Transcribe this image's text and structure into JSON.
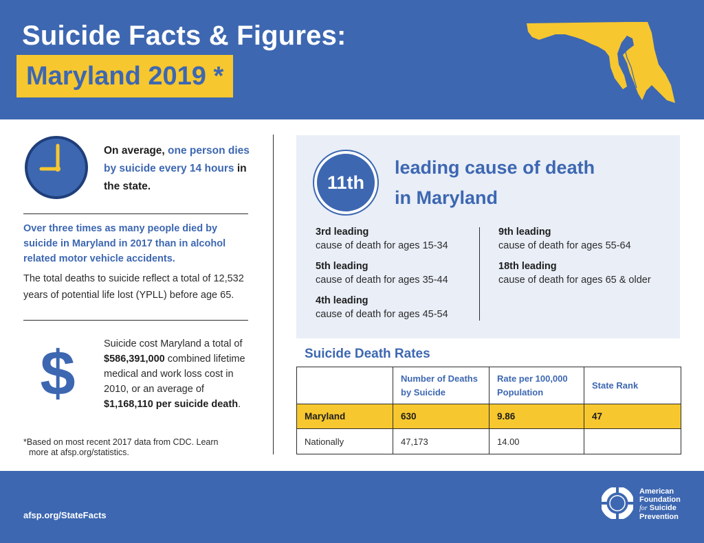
{
  "header": {
    "title_line1": "Suicide Facts & Figures:",
    "title_line2": "Maryland 2019 *",
    "accent_color": "#f7c72f",
    "brand_color": "#3d67b1"
  },
  "frequency": {
    "icon": "clock-icon",
    "text_before": "On average, ",
    "text_highlight": "one person dies by suicide every 14 hours",
    "text_after": " in the state."
  },
  "comparison": {
    "headline": "Over three times as many people died by suicide in Maryland in 2017 than in alcohol related motor vehicle accidents.",
    "ypll": "The total deaths to suicide reflect a total of 12,532 years of potential life lost (YPLL) before age 65."
  },
  "cost": {
    "icon": "dollar-icon",
    "dollar_symbol": "$",
    "part1": "Suicide cost Maryland a total of ",
    "total": "$586,391,000",
    "part2": " combined lifetime medical and work loss cost in 2010, or an average of ",
    "average": "$1,168,110 per suicide death",
    "part3": "."
  },
  "footnote": {
    "line1": "*Based on most recent 2017 data from CDC. Learn",
    "line2": "more at afsp.org/statistics."
  },
  "ranking": {
    "rank": "11th",
    "label_line1": "leading cause of death",
    "label_line2": "in Maryland",
    "by_age_left": [
      {
        "rank": "3rd leading",
        "desc": "cause of death for ages 15-34"
      },
      {
        "rank": "5th leading",
        "desc": "cause of death for ages 35-44"
      },
      {
        "rank": "4th leading",
        "desc": "cause of death for ages 45-54"
      }
    ],
    "by_age_right": [
      {
        "rank": "9th leading",
        "desc": "cause of death for ages 55-64"
      },
      {
        "rank": "18th leading",
        "desc": "cause of death for ages 65 & older"
      }
    ]
  },
  "rates": {
    "title": "Suicide Death Rates",
    "headers": [
      "",
      "Number of Deaths by Suicide",
      "Rate per 100,000 Population",
      "State Rank"
    ],
    "rows": [
      {
        "region": "Maryland",
        "deaths": "630",
        "rate": "9.86",
        "rank": "47"
      },
      {
        "region": "Nationally",
        "deaths": "47,173",
        "rate": "14.00",
        "rank": ""
      }
    ]
  },
  "footer": {
    "url": "afsp.org/StateFacts",
    "org_line1": "American",
    "org_line2": "Foundation",
    "org_line3_italic": "for",
    "org_line3": " Suicide",
    "org_line4": "Prevention",
    "logo_icon": "lifebuoy-icon"
  }
}
